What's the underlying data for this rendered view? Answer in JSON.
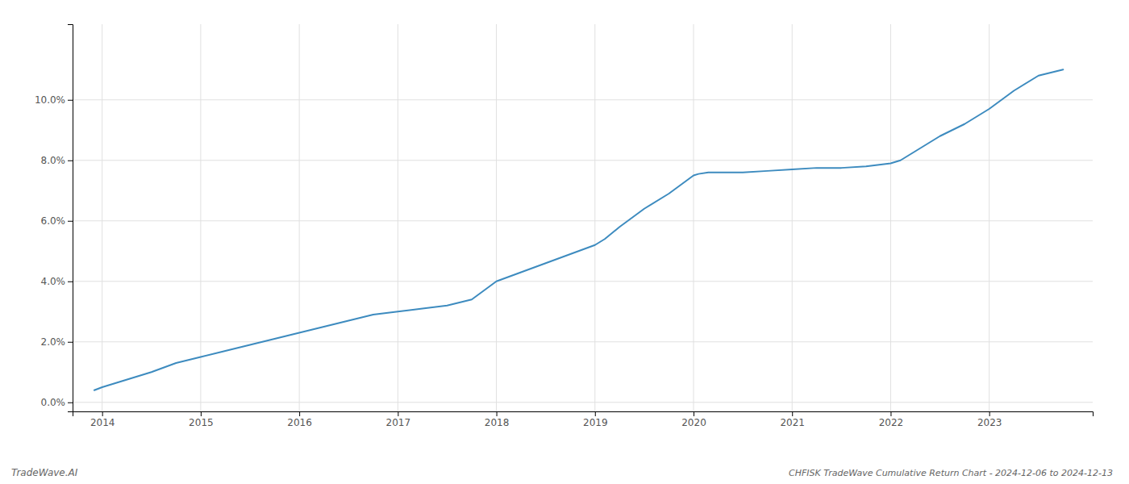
{
  "chart_data": {
    "type": "line",
    "title": "CHFISK TradeWave Cumulative Return Chart - 2024-12-06 to 2024-12-13",
    "annotations": [
      "TradeWave.AI"
    ],
    "color": "#3d8bbf",
    "grid": true,
    "x": [
      2013.92,
      2014.0,
      2014.2,
      2014.5,
      2014.75,
      2015.0,
      2015.25,
      2015.5,
      2015.75,
      2016.0,
      2016.25,
      2016.5,
      2016.75,
      2017.0,
      2017.25,
      2017.5,
      2017.75,
      2018.0,
      2018.25,
      2018.5,
      2018.75,
      2019.0,
      2019.1,
      2019.25,
      2019.5,
      2019.75,
      2020.0,
      2020.05,
      2020.15,
      2020.25,
      2020.5,
      2020.75,
      2021.0,
      2021.25,
      2021.5,
      2021.75,
      2022.0,
      2022.1,
      2022.25,
      2022.5,
      2022.75,
      2023.0,
      2023.25,
      2023.5,
      2023.75
    ],
    "values": [
      0.004,
      0.005,
      0.007,
      0.01,
      0.013,
      0.015,
      0.017,
      0.019,
      0.021,
      0.023,
      0.025,
      0.027,
      0.029,
      0.03,
      0.031,
      0.032,
      0.034,
      0.04,
      0.043,
      0.046,
      0.049,
      0.052,
      0.054,
      0.058,
      0.064,
      0.069,
      0.075,
      0.0755,
      0.076,
      0.076,
      0.076,
      0.0765,
      0.077,
      0.0775,
      0.0775,
      0.078,
      0.079,
      0.08,
      0.083,
      0.088,
      0.092,
      0.097,
      0.103,
      0.108,
      0.11
    ],
    "xlim": [
      2013.7,
      2024.05
    ],
    "xticks": [
      2014,
      2015,
      2016,
      2017,
      2018,
      2019,
      2020,
      2021,
      2022,
      2023
    ],
    "ylim": [
      -0.003,
      0.125
    ],
    "yticks": [
      {
        "value": 0.0,
        "label": "0.0%"
      },
      {
        "value": 0.02,
        "label": "2.0%"
      },
      {
        "value": 0.04,
        "label": "4.0%"
      },
      {
        "value": 0.06,
        "label": "6.0%"
      },
      {
        "value": 0.08,
        "label": "8.0%"
      },
      {
        "value": 0.1,
        "label": "10.0%"
      }
    ]
  }
}
